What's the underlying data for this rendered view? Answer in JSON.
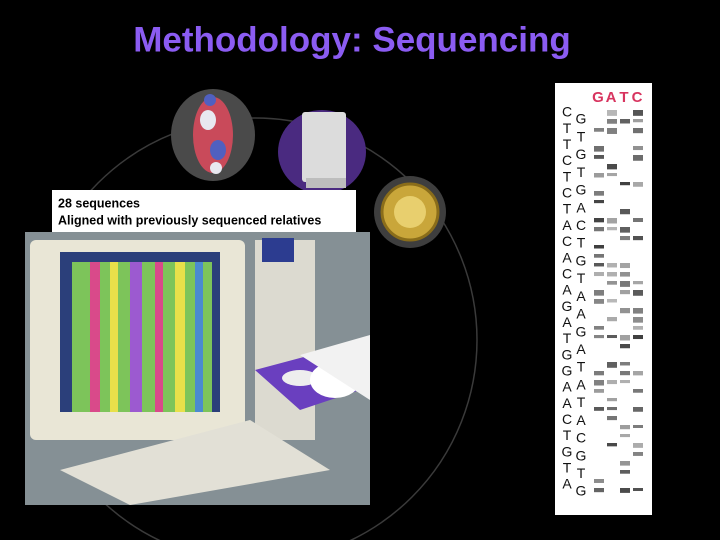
{
  "title": "Methodology: Sequencing",
  "caption": {
    "line1": "28 sequences",
    "line2": "Aligned with previously sequenced relatives"
  },
  "gel": {
    "header": [
      "G",
      "A",
      "T",
      "C"
    ],
    "left_sequence": [
      "C",
      "T",
      "T",
      "C",
      "T",
      "C",
      "T",
      "A",
      "C",
      "A",
      "C",
      "A",
      "G",
      "A",
      "T",
      "G",
      "G",
      "A",
      "A",
      "C",
      "T",
      "G",
      "T",
      "A"
    ],
    "right_sequence": [
      "G",
      "T",
      "G",
      "T",
      "G",
      "A",
      "C",
      "T",
      "G",
      "T",
      "A",
      "A",
      "G",
      "A",
      "T",
      "A",
      "T",
      "A",
      "C",
      "G",
      "T",
      "G"
    ]
  }
}
